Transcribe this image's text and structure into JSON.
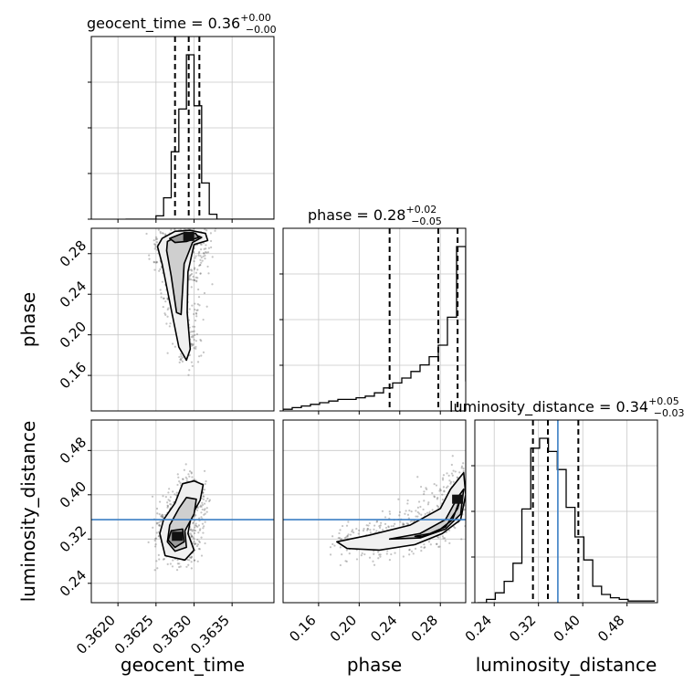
{
  "chart_data": {
    "type": "corner",
    "parameters": [
      "geocent_time",
      "phase",
      "luminosity_distance"
    ],
    "titles": [
      {
        "param": "geocent_time",
        "label": "geocent_time",
        "median": "0.36",
        "plus": "+0.00",
        "minus": "−0.00"
      },
      {
        "param": "phase",
        "label": "phase",
        "median": "0.28",
        "plus": "+0.02",
        "minus": "−0.05"
      },
      {
        "param": "luminosity_distance",
        "label": "luminosity_distance",
        "median": "0.34",
        "plus": "+0.05",
        "minus": "−0.03"
      }
    ],
    "axis_labels": {
      "x": [
        "geocent_time",
        "phase",
        "luminosity_distance"
      ],
      "y": [
        "phase",
        "luminosity_distance"
      ]
    },
    "ranges": {
      "geocent_time": [
        0.36165,
        0.36405
      ],
      "phase": [
        0.125,
        0.305
      ],
      "luminosity_distance": [
        0.205,
        0.535
      ]
    },
    "ticks": {
      "geocent_time": [
        "0.3620",
        "0.3625",
        "0.3630",
        "0.3635"
      ],
      "phase": [
        "0.16",
        "0.20",
        "0.24",
        "0.28"
      ],
      "luminosity_distance": [
        "0.24",
        "0.32",
        "0.40",
        "0.48"
      ]
    },
    "quantiles": {
      "geocent_time": [
        0.36275,
        0.36293,
        0.36307
      ],
      "phase": [
        0.23,
        0.278,
        0.297
      ],
      "luminosity_distance": [
        0.31,
        0.337,
        0.392
      ]
    },
    "truth": {
      "luminosity_distance": 0.355
    },
    "histograms": {
      "geocent_time": {
        "edges": [
          0.3621,
          0.3622,
          0.3623,
          0.3624,
          0.3625,
          0.3626,
          0.3627,
          0.3628,
          0.3629,
          0.363,
          0.3631,
          0.3632,
          0.3633,
          0.3634,
          0.3635,
          0.3636,
          0.3637,
          0.3638,
          0.3639,
          0.364,
          0.3641
        ],
        "counts": [
          0,
          0,
          0,
          0,
          0.02,
          0.13,
          0.41,
          0.67,
          1.0,
          0.69,
          0.22,
          0.03,
          0,
          0,
          0,
          0,
          0,
          0,
          0,
          0
        ]
      },
      "phase": {
        "edges": [
          0.125,
          0.134,
          0.143,
          0.152,
          0.161,
          0.17,
          0.179,
          0.188,
          0.197,
          0.206,
          0.215,
          0.224,
          0.233,
          0.242,
          0.251,
          0.26,
          0.269,
          0.278,
          0.287,
          0.296,
          0.305
        ],
        "counts": [
          0.01,
          0.02,
          0.03,
          0.04,
          0.05,
          0.06,
          0.07,
          0.07,
          0.08,
          0.09,
          0.11,
          0.14,
          0.17,
          0.2,
          0.24,
          0.28,
          0.33,
          0.4,
          0.57,
          1.0,
          0.18
        ]
      },
      "luminosity_distance": {
        "edges": [
          0.21,
          0.226,
          0.242,
          0.258,
          0.274,
          0.29,
          0.306,
          0.322,
          0.338,
          0.354,
          0.37,
          0.386,
          0.402,
          0.418,
          0.434,
          0.45,
          0.466,
          0.482,
          0.498,
          0.514,
          0.53
        ],
        "counts": [
          0,
          0.02,
          0.06,
          0.13,
          0.24,
          0.57,
          0.94,
          1.0,
          0.92,
          0.81,
          0.58,
          0.4,
          0.26,
          0.1,
          0.05,
          0.03,
          0.02,
          0.01,
          0.01,
          0.01
        ]
      }
    },
    "contours": {
      "phase_vs_geocent_time": [
        [
          [
            0.36258,
            0.295
          ],
          [
            0.36275,
            0.302
          ],
          [
            0.36295,
            0.303
          ],
          [
            0.36315,
            0.3
          ],
          [
            0.36318,
            0.293
          ],
          [
            0.363,
            0.289
          ],
          [
            0.36292,
            0.262
          ],
          [
            0.36291,
            0.222
          ],
          [
            0.36295,
            0.186
          ],
          [
            0.3629,
            0.175
          ],
          [
            0.3628,
            0.188
          ],
          [
            0.3627,
            0.225
          ],
          [
            0.36258,
            0.27
          ],
          [
            0.36252,
            0.287
          ]
        ],
        [
          [
            0.36265,
            0.292
          ],
          [
            0.3628,
            0.298
          ],
          [
            0.363,
            0.299
          ],
          [
            0.3631,
            0.296
          ],
          [
            0.36298,
            0.291
          ],
          [
            0.36287,
            0.27
          ],
          [
            0.36283,
            0.22
          ],
          [
            0.36277,
            0.222
          ],
          [
            0.3627,
            0.258
          ],
          [
            0.36264,
            0.283
          ]
        ],
        [
          [
            0.36268,
            0.295
          ],
          [
            0.36285,
            0.3
          ],
          [
            0.36302,
            0.3
          ],
          [
            0.36306,
            0.296
          ],
          [
            0.3629,
            0.292
          ],
          [
            0.36275,
            0.291
          ]
        ]
      ],
      "luminosity_distance_vs_geocent_time": [
        [
          [
            0.36285,
            0.42
          ],
          [
            0.363,
            0.425
          ],
          [
            0.36312,
            0.418
          ],
          [
            0.36308,
            0.39
          ],
          [
            0.36296,
            0.36
          ],
          [
            0.36292,
            0.33
          ],
          [
            0.363,
            0.3
          ],
          [
            0.36288,
            0.282
          ],
          [
            0.36262,
            0.29
          ],
          [
            0.36255,
            0.33
          ],
          [
            0.3626,
            0.355
          ],
          [
            0.36275,
            0.385
          ]
        ],
        [
          [
            0.3629,
            0.395
          ],
          [
            0.36303,
            0.392
          ],
          [
            0.363,
            0.365
          ],
          [
            0.36288,
            0.335
          ],
          [
            0.3629,
            0.305
          ],
          [
            0.36275,
            0.298
          ],
          [
            0.36265,
            0.315
          ],
          [
            0.36268,
            0.345
          ],
          [
            0.3628,
            0.375
          ]
        ],
        [
          [
            0.3627,
            0.335
          ],
          [
            0.36285,
            0.338
          ],
          [
            0.36287,
            0.315
          ],
          [
            0.36275,
            0.305
          ],
          [
            0.36266,
            0.318
          ]
        ]
      ],
      "luminosity_distance_vs_phase": [
        [
          [
            0.178,
            0.315
          ],
          [
            0.21,
            0.327
          ],
          [
            0.25,
            0.345
          ],
          [
            0.28,
            0.375
          ],
          [
            0.29,
            0.41
          ],
          [
            0.303,
            0.44
          ],
          [
            0.305,
            0.4
          ],
          [
            0.3,
            0.355
          ],
          [
            0.282,
            0.33
          ],
          [
            0.255,
            0.31
          ],
          [
            0.22,
            0.3
          ],
          [
            0.188,
            0.303
          ]
        ],
        [
          [
            0.23,
            0.32
          ],
          [
            0.26,
            0.33
          ],
          [
            0.285,
            0.355
          ],
          [
            0.297,
            0.395
          ],
          [
            0.303,
            0.41
          ],
          [
            0.3,
            0.365
          ],
          [
            0.285,
            0.338
          ],
          [
            0.26,
            0.322
          ]
        ],
        [
          [
            0.255,
            0.325
          ],
          [
            0.27,
            0.33
          ],
          [
            0.285,
            0.342
          ],
          [
            0.297,
            0.375
          ],
          [
            0.3,
            0.395
          ],
          [
            0.292,
            0.355
          ],
          [
            0.278,
            0.335
          ],
          [
            0.262,
            0.324
          ]
        ]
      ]
    },
    "dense_cores": {
      "phase_vs_geocent_time": [
        0.36293,
        0.297
      ],
      "luminosity_distance_vs_geocent_time": [
        0.36278,
        0.325
      ],
      "luminosity_distance_vs_phase": [
        0.297,
        0.392
      ]
    },
    "colors": {
      "truth": "#3b7fc4",
      "grid": "#c8c8c8",
      "line": "#000000"
    }
  }
}
